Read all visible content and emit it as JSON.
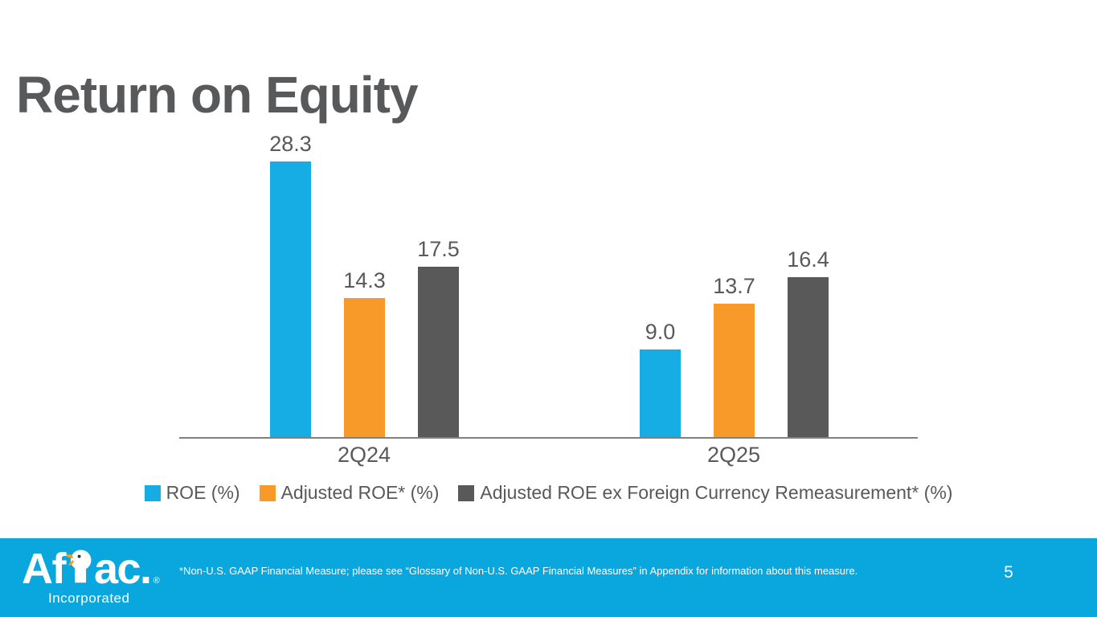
{
  "title": "Return on Equity",
  "chart_data": {
    "type": "bar",
    "title": "Return on Equity",
    "categories": [
      "2Q24",
      "2Q25"
    ],
    "series": [
      {
        "name": "ROE (%)",
        "color": "#16ACE4",
        "values": [
          28.3,
          9.0
        ]
      },
      {
        "name": "Adjusted ROE* (%)",
        "color": "#F79A2A",
        "values": [
          14.3,
          13.7
        ]
      },
      {
        "name": "Adjusted ROE ex Foreign Currency Remeasurement* (%)",
        "color": "#595959",
        "values": [
          17.5,
          16.4
        ]
      }
    ],
    "value_labels": [
      "28.3",
      "14.3",
      "17.5",
      "9.0",
      "13.7",
      "16.4"
    ],
    "xlabel": "",
    "ylabel": "",
    "ylim": [
      0,
      30
    ],
    "grid": false,
    "legend_position": "bottom"
  },
  "colors": {
    "title_text": "#58595B",
    "label_text": "#595959",
    "axis_line": "#808080",
    "bar_cyan": "#16ACE4",
    "bar_orange": "#F79A2A",
    "bar_gray": "#595959",
    "footer_bg": "#0AA7DE",
    "footer_text": "#FFFFFF",
    "duck_beak": "#F6A01E"
  },
  "footer": {
    "logo_text": "Aflac",
    "logo_period": ".",
    "logo_reg": "®",
    "logo_sub": "Incorporated",
    "footnote": "*Non-U.S. GAAP Financial Measure; please see “Glossary of Non-U.S. GAAP Financial Measures” in Appendix for information about this measure.",
    "page_number": "5"
  }
}
